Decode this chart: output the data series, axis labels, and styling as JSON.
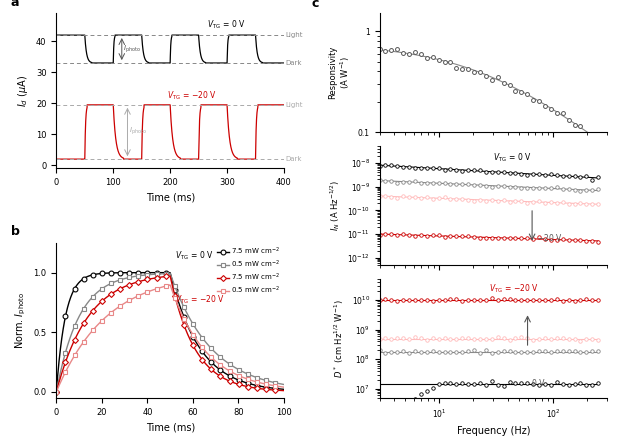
{
  "panel_a": {
    "black_light": 42.0,
    "black_dark": 33.0,
    "red_light": 19.5,
    "red_dark": 2.0,
    "xlabel": "Time (ms)",
    "ylabel": "$I_d$ ($\\mu$A)",
    "vtg0_label": "$V_{\\rm TG}$ = 0 V",
    "vtgm20_label": "$V_{\\rm TG}$ = $-$20 V",
    "light_label": "Light",
    "dark_label": "Dark"
  },
  "panel_b": {
    "xlabel": "Time (ms)",
    "ylabel": "Norm. $I_{\\rm photo}$",
    "vtg0_label": "$V_{\\rm TG}$ = 0 V",
    "vtgm20_label": "$V_{\\rm TG}$ = $-$20 V",
    "leg1": "7.5 mW cm$^{-2}$",
    "leg2": "0.5 mW cm$^{-2}$"
  },
  "panel_c1": {
    "ylabel1": "Responsivity",
    "ylabel2": "(A W$^{-1}$)"
  },
  "panel_c2": {
    "ylabel": "$I_N$ (A Hz$^{-1/2}$)",
    "vtg0_label": "$V_{\\rm TG}$ = 0 V",
    "arrow_label": "$-$20 V"
  },
  "panel_c3": {
    "ylabel": "$D^*$ (cm Hz$^{1/2}$ W$^{-1}$)",
    "xlabel": "Frequency (Hz)",
    "vtgm20_label": "$V_{\\rm TG}$ = $-$20 V",
    "vtg0_label": "0 V"
  },
  "colors": {
    "black": "#000000",
    "dark_gray": "#555555",
    "gray": "#888888",
    "light_gray": "#aaaaaa",
    "red": "#cc0000",
    "pink": "#e88888",
    "light_pink": "#ffbbbb"
  }
}
